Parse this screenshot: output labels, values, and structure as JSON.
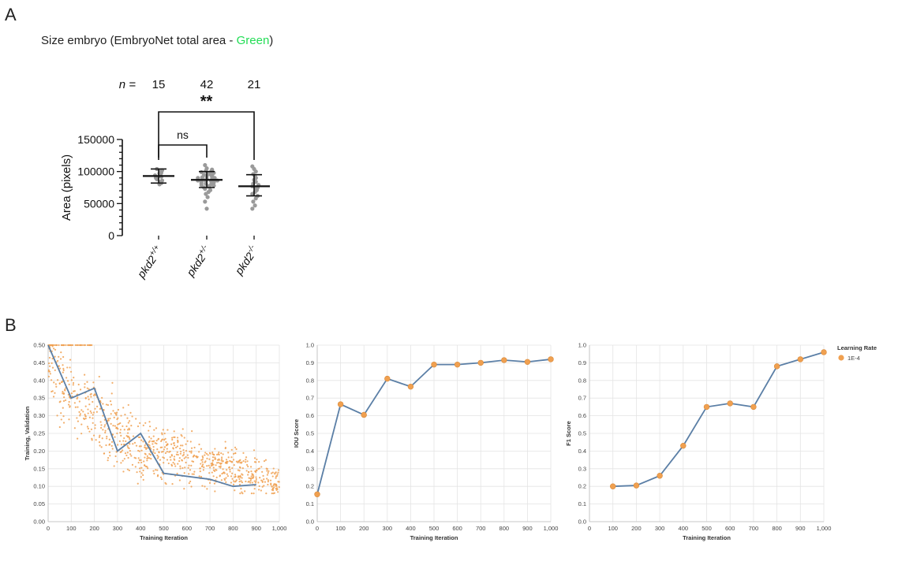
{
  "panel_labels": [
    "A",
    "B"
  ],
  "chart_data": [
    {
      "type": "scatter",
      "panel": "A",
      "title_main": "Size embryo (EmbryoNet total area - ",
      "title_highlight": "Green",
      "title_end": ")",
      "title_highlight_color": "#22dd55",
      "ylabel": "Area (pixels)",
      "ylim": [
        0,
        150000
      ],
      "yticks": [
        0,
        50000,
        100000,
        150000
      ],
      "ytick_labels": [
        "0",
        "50000",
        "100000",
        "150000"
      ],
      "n_label": "n =",
      "categories": [
        {
          "base": "pkd2",
          "sup": "+/+",
          "n": "15",
          "mean": 93000,
          "sd_low": 82000,
          "sd_high": 104000,
          "points": [
            104000,
            102000,
            100000,
            98000,
            97000,
            95000,
            94000,
            93000,
            92000,
            90000,
            88000,
            86000,
            84000,
            82000,
            80000
          ]
        },
        {
          "base": "pkd2",
          "sup": "+/-",
          "n": "42",
          "mean": 87000,
          "sd_low": 75000,
          "sd_high": 100000,
          "points": [
            110000,
            105000,
            103000,
            101000,
            100000,
            99000,
            98000,
            97000,
            96000,
            95000,
            94000,
            93000,
            92000,
            91000,
            90000,
            90000,
            89000,
            88000,
            88000,
            87000,
            87000,
            86000,
            86000,
            85000,
            85000,
            84000,
            83000,
            82000,
            81000,
            80000,
            79000,
            78000,
            77000,
            76000,
            75000,
            73000,
            71000,
            68000,
            65000,
            60000,
            53000,
            42000
          ]
        },
        {
          "base": "pkd2",
          "sup": "-/-",
          "n": "21",
          "mean": 77000,
          "sd_low": 62000,
          "sd_high": 95000,
          "points": [
            108000,
            104000,
            100000,
            96000,
            93000,
            90000,
            87000,
            84000,
            81000,
            79000,
            77000,
            75000,
            73000,
            71000,
            68000,
            65000,
            62000,
            58000,
            53000,
            47000,
            42000
          ]
        }
      ],
      "comparisons": [
        {
          "from": 0,
          "to": 1,
          "label": "ns"
        },
        {
          "from": 0,
          "to": 2,
          "label": "**"
        }
      ]
    },
    {
      "type": "line",
      "panel": "B",
      "xlabel": "Training Iteration",
      "ylabel": "Training, Validation",
      "xlim": [
        0,
        1000
      ],
      "ylim": [
        0,
        0.5
      ],
      "xticks": [
        0,
        100,
        200,
        300,
        400,
        500,
        600,
        700,
        800,
        900,
        1000
      ],
      "xtick_labels": [
        "0",
        "100",
        "200",
        "300",
        "400",
        "500",
        "600",
        "700",
        "800",
        "900",
        "1,000"
      ],
      "yticks": [
        0,
        0.05,
        0.1,
        0.15,
        0.2,
        0.25,
        0.3,
        0.35,
        0.4,
        0.45,
        0.5
      ],
      "ytick_labels": [
        "0.00",
        "0.05",
        "0.10",
        "0.15",
        "0.20",
        "0.25",
        "0.30",
        "0.35",
        "0.40",
        "0.45",
        "0.50"
      ],
      "series": [
        {
          "kind": "line",
          "color": "#5b7fa6",
          "x": [
            0,
            100,
            200,
            300,
            400,
            500,
            700,
            800,
            900
          ],
          "y": [
            0.5,
            0.35,
            0.378,
            0.2,
            0.25,
            0.137,
            0.12,
            0.1,
            0.105
          ]
        },
        {
          "kind": "scatter-cloud",
          "color": "#f0a050",
          "x": [
            0,
            100,
            200,
            300,
            400,
            500,
            600,
            700,
            800,
            900,
            1000
          ],
          "y": [
            0.44,
            0.36,
            0.32,
            0.25,
            0.21,
            0.19,
            0.18,
            0.16,
            0.15,
            0.13,
            0.11
          ]
        }
      ]
    },
    {
      "type": "line",
      "panel": "B",
      "xlabel": "Training Iteration",
      "ylabel": "IOU Score",
      "xlim": [
        0,
        1000
      ],
      "ylim": [
        0,
        1
      ],
      "xticks": [
        0,
        100,
        200,
        300,
        400,
        500,
        600,
        700,
        800,
        900,
        1000
      ],
      "xtick_labels": [
        "0",
        "100",
        "200",
        "300",
        "400",
        "500",
        "600",
        "700",
        "800",
        "900",
        "1,000"
      ],
      "yticks": [
        0,
        0.1,
        0.2,
        0.3,
        0.4,
        0.5,
        0.6,
        0.7,
        0.8,
        0.9,
        1
      ],
      "ytick_labels": [
        "0.0",
        "0.1",
        "0.2",
        "0.3",
        "0.4",
        "0.5",
        "0.6",
        "0.7",
        "0.8",
        "0.9",
        "1.0"
      ],
      "series": [
        {
          "color": "#5b7fa6",
          "marker_color": "#f0a050",
          "x": [
            0,
            100,
            200,
            300,
            400,
            500,
            600,
            700,
            800,
            900,
            1000
          ],
          "y": [
            0.155,
            0.665,
            0.605,
            0.81,
            0.765,
            0.89,
            0.89,
            0.9,
            0.915,
            0.905,
            0.92
          ]
        }
      ]
    },
    {
      "type": "line",
      "panel": "B",
      "xlabel": "Training Iteration",
      "ylabel": "F1 Score",
      "xlim": [
        0,
        1000
      ],
      "ylim": [
        0,
        1
      ],
      "xticks": [
        0,
        100,
        200,
        300,
        400,
        500,
        600,
        700,
        800,
        900,
        1000
      ],
      "xtick_labels": [
        "0",
        "100",
        "200",
        "300",
        "400",
        "500",
        "600",
        "700",
        "800",
        "900",
        "1,000"
      ],
      "yticks": [
        0,
        0.1,
        0.2,
        0.3,
        0.4,
        0.5,
        0.6,
        0.7,
        0.8,
        0.9,
        1
      ],
      "ytick_labels": [
        "0.0",
        "0.1",
        "0.2",
        "0.3",
        "0.4",
        "0.5",
        "0.6",
        "0.7",
        "0.8",
        "0.9",
        "1.0"
      ],
      "legend": {
        "title": "Learning Rate",
        "entries": [
          {
            "label": "1E-4",
            "color": "#f0a050"
          }
        ],
        "placement": "right"
      },
      "series": [
        {
          "name": "1E-4",
          "color": "#5b7fa6",
          "marker_color": "#f0a050",
          "x": [
            100,
            200,
            300,
            400,
            500,
            600,
            700,
            800,
            900,
            1000
          ],
          "y": [
            0.2,
            0.205,
            0.26,
            0.43,
            0.65,
            0.67,
            0.65,
            0.88,
            0.92,
            0.96
          ]
        }
      ]
    }
  ]
}
